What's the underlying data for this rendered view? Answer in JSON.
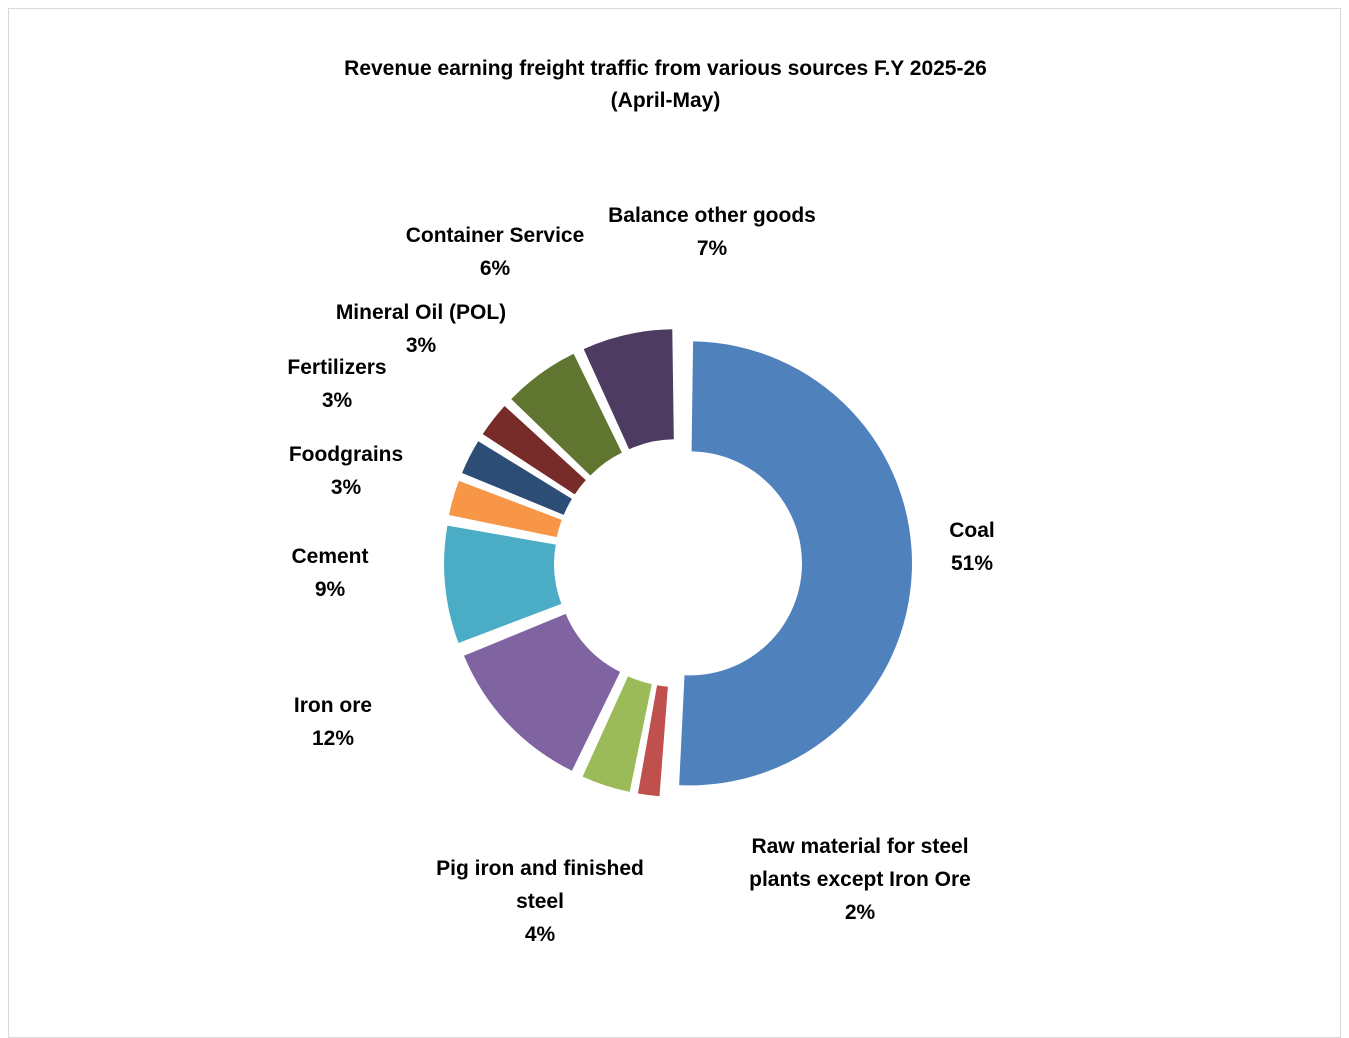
{
  "chart_data": {
    "type": "pie",
    "style": "donut",
    "title": "Revenue earning freight traffic from various sources F.Y 2025-26",
    "subtitle": "(April-May)",
    "categories": [
      "Coal",
      "Raw material for steel plants except Iron Ore",
      "Pig iron and finished steel",
      "Iron ore",
      "Cement",
      "Foodgrains",
      "Fertilizers",
      "Mineral Oil (POL)",
      "Container Service",
      "Balance other goods"
    ],
    "values": [
      51,
      2,
      4,
      12,
      9,
      3,
      3,
      3,
      6,
      7
    ],
    "value_labels": [
      "51%",
      "2%",
      "4%",
      "12%",
      "9%",
      "3%",
      "3%",
      "3%",
      "6%",
      "7%"
    ],
    "colors": [
      "#4F81BD",
      "#C0504D",
      "#9BBB59",
      "#8064A2",
      "#4BACC6",
      "#F79646",
      "#2C4D75",
      "#772C2A",
      "#5F7530",
      "#4D3B62"
    ],
    "legend": "none",
    "data_labels": "outside"
  }
}
